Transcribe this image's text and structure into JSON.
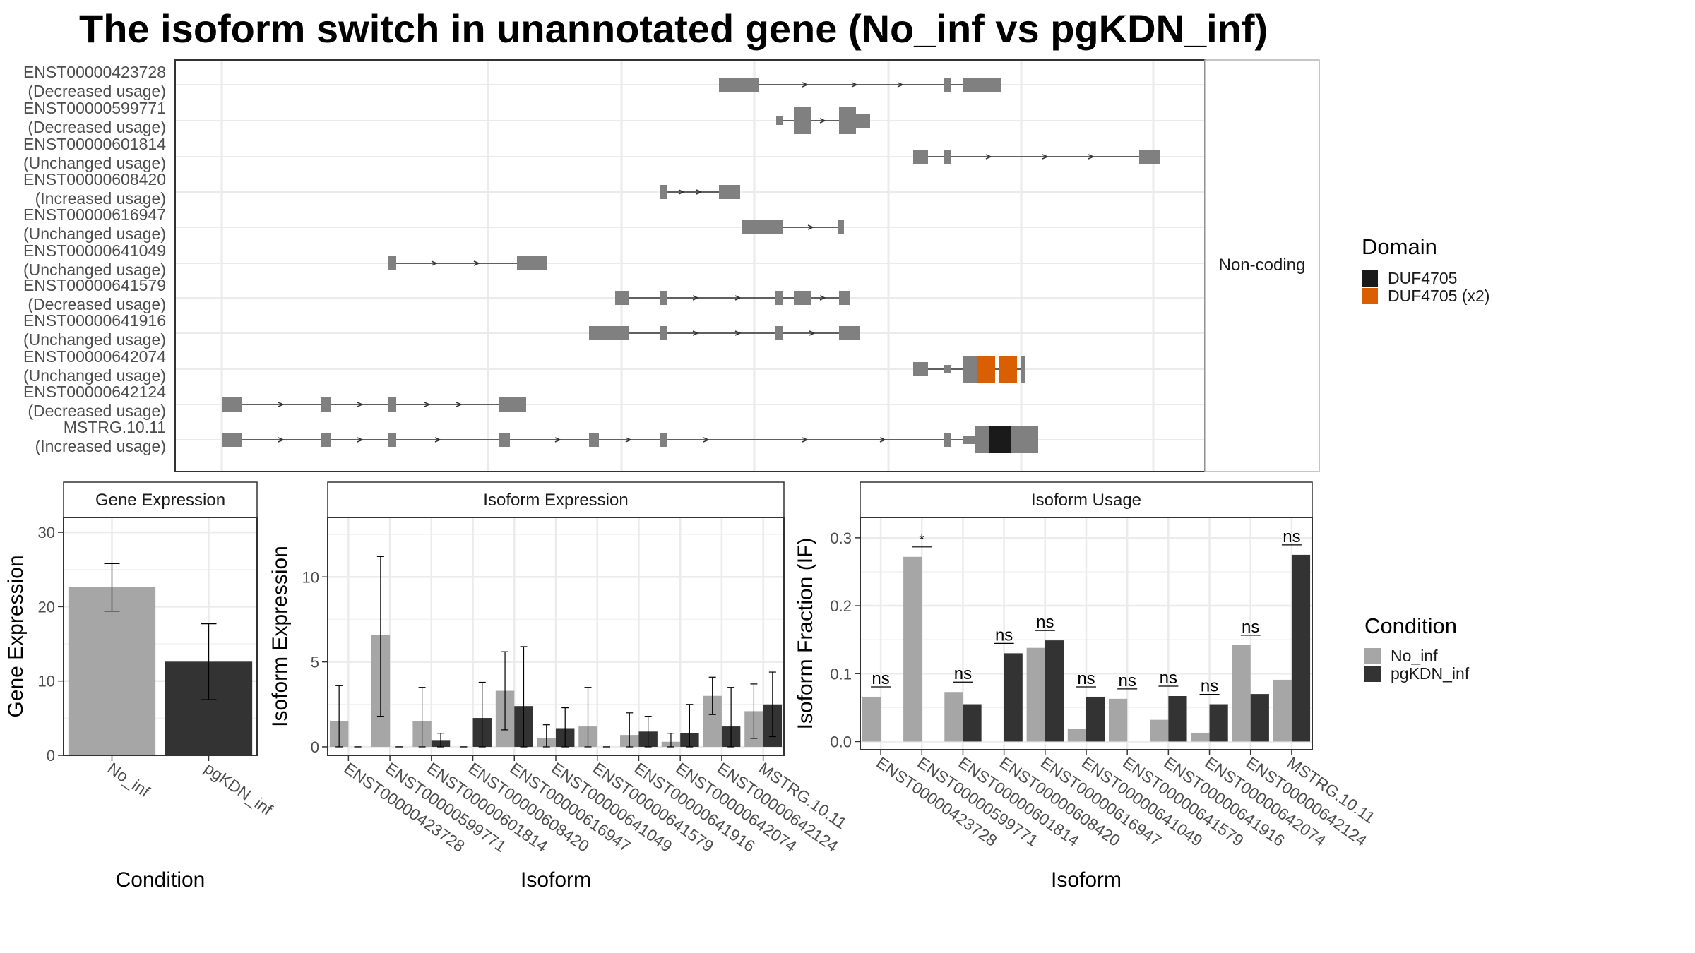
{
  "title": "The isoform switch in unannotated gene (No_inf vs pgKDN_inf)",
  "chart_data": [
    {
      "type": "gene-structure",
      "strip": "Non-coding",
      "isoforms": [
        {
          "id": "ENST00000423728",
          "usage": "(Decreased usage)"
        },
        {
          "id": "ENST00000599771",
          "usage": "(Decreased usage)"
        },
        {
          "id": "ENST00000601814",
          "usage": "(Unchanged usage)"
        },
        {
          "id": "ENST00000608420",
          "usage": "(Increased usage)"
        },
        {
          "id": "ENST00000616947",
          "usage": "(Unchanged usage)"
        },
        {
          "id": "ENST00000641049",
          "usage": "(Unchanged usage)"
        },
        {
          "id": "ENST00000641579",
          "usage": "(Decreased usage)"
        },
        {
          "id": "ENST00000641916",
          "usage": "(Unchanged usage)"
        },
        {
          "id": "ENST00000642074",
          "usage": "(Unchanged usage)"
        },
        {
          "id": "ENST00000642124",
          "usage": "(Decreased usage)"
        },
        {
          "id": "MSTRG.10.11",
          "usage": "(Increased usage)"
        }
      ],
      "legend": {
        "title": "Domain",
        "items": [
          {
            "label": "DUF4705",
            "color": "#1a1a1a"
          },
          {
            "label": "DUF4705 (x2)",
            "color": "#d95f02"
          }
        ]
      }
    },
    {
      "type": "bar",
      "panel": "Gene Expression",
      "xlabel": "Condition",
      "ylabel": "Gene Expression",
      "ylim": [
        0,
        32
      ],
      "yticks": [
        0,
        10,
        20,
        30
      ],
      "categories": [
        "No_inf",
        "pgKDN_inf"
      ],
      "values": [
        22.6,
        12.6
      ],
      "error_low": [
        19.4,
        7.5
      ],
      "error_high": [
        25.8,
        17.7
      ],
      "colors": [
        "#a6a6a6",
        "#333333"
      ]
    },
    {
      "type": "bar",
      "panel": "Isoform Expression",
      "xlabel": "Isoform",
      "ylabel": "Isoform Expression",
      "ylim": [
        -0.5,
        13.5
      ],
      "yticks": [
        0,
        5,
        10
      ],
      "categories": [
        "ENST00000423728",
        "ENST00000599771",
        "ENST00000601814",
        "ENST00000608420",
        "ENST00000616947",
        "ENST00000641049",
        "ENST00000641579",
        "ENST00000641916",
        "ENST00000642074",
        "ENST00000642124",
        "MSTRG.10.11"
      ],
      "series": [
        {
          "name": "No_inf",
          "color": "#a6a6a6",
          "values": [
            1.5,
            6.6,
            1.5,
            0,
            3.3,
            0.5,
            1.2,
            0.7,
            0.3,
            3.0,
            2.1
          ],
          "err_low": [
            0,
            1.8,
            0,
            0,
            1.0,
            0,
            0,
            0,
            0,
            1.9,
            0.5
          ],
          "err_high": [
            3.6,
            11.2,
            3.5,
            0,
            5.6,
            1.3,
            3.5,
            2.0,
            0.8,
            4.1,
            3.7
          ]
        },
        {
          "name": "pgKDN_inf",
          "color": "#333333",
          "values": [
            0,
            0,
            0.4,
            1.7,
            2.4,
            1.1,
            0,
            0.9,
            0.8,
            1.2,
            2.5
          ],
          "err_low": [
            0,
            0,
            0,
            0,
            0,
            0,
            0,
            0,
            0,
            0,
            0.6
          ],
          "err_high": [
            0,
            0,
            0.8,
            3.8,
            5.9,
            2.3,
            0,
            1.8,
            2.5,
            3.5,
            4.4
          ]
        }
      ]
    },
    {
      "type": "bar",
      "panel": "Isoform Usage",
      "xlabel": "Isoform",
      "ylabel": "Isoform Fraction (IF)",
      "ylim": [
        -0.012,
        0.33
      ],
      "yticks": [
        "0.0",
        "0.1",
        "0.2",
        "0.3"
      ],
      "categories": [
        "ENST00000423728",
        "ENST00000599771",
        "ENST00000601814",
        "ENST00000608420",
        "ENST00000616947",
        "ENST00000641049",
        "ENST00000641579",
        "ENST00000641916",
        "ENST00000642074",
        "ENST00000642124",
        "MSTRG.10.11"
      ],
      "series": [
        {
          "name": "No_inf",
          "color": "#a6a6a6",
          "values": [
            0.066,
            0.272,
            0.073,
            0,
            0.138,
            0.019,
            0.063,
            0.032,
            0.013,
            0.142,
            0.091
          ]
        },
        {
          "name": "pgKDN_inf",
          "color": "#333333",
          "values": [
            0,
            0,
            0.055,
            0.13,
            0.149,
            0.066,
            0,
            0.067,
            0.055,
            0.07,
            0.275
          ]
        }
      ],
      "significance": [
        "ns",
        "*",
        "ns",
        "ns",
        "ns",
        "ns",
        "ns",
        "ns",
        "ns",
        "ns",
        "ns"
      ]
    }
  ],
  "condition_legend": {
    "title": "Condition",
    "items": [
      {
        "label": "No_inf",
        "color": "#a6a6a6"
      },
      {
        "label": "pgKDN_inf",
        "color": "#333333"
      }
    ]
  }
}
